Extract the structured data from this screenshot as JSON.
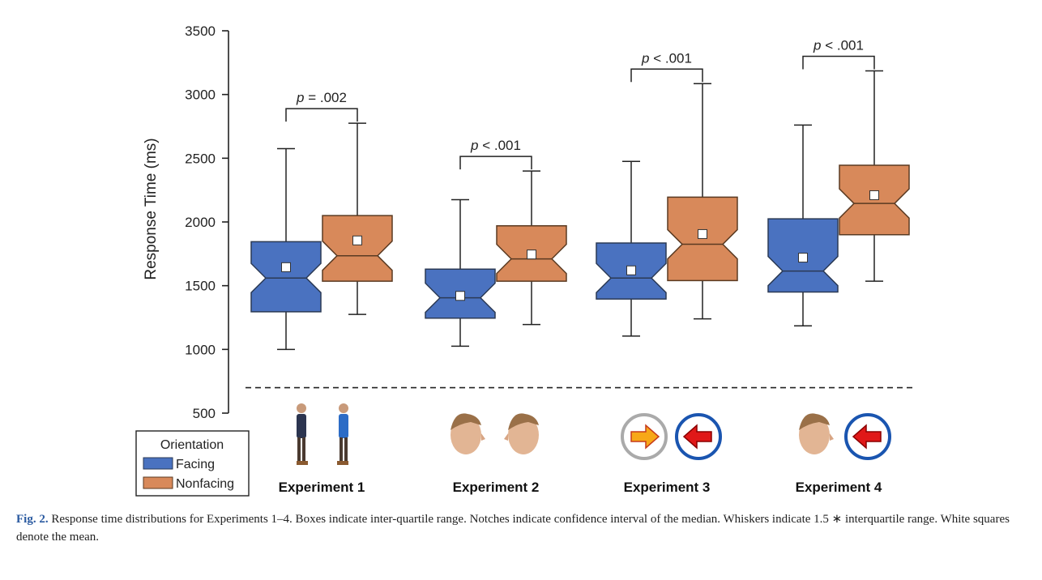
{
  "chart_data": {
    "type": "boxplot",
    "ylabel": "Response Time (ms)",
    "ylim": [
      500,
      3500
    ],
    "yticks": [
      500,
      1000,
      1500,
      2000,
      2500,
      3000,
      3500
    ],
    "reference_line_y": 700,
    "legend": {
      "title": "Orientation",
      "placement": "bottom-left",
      "entries": [
        {
          "name": "Facing",
          "color": "#4a72c0"
        },
        {
          "name": "Nonfacing",
          "color": "#d8895a"
        }
      ]
    },
    "groups": [
      {
        "label": "Experiment 1",
        "pvalue": "p = .002",
        "stimulus": "standing-persons",
        "boxes": [
          {
            "series": "Facing",
            "whisker_low": 1000,
            "q1": 1295,
            "median": 1560,
            "q3": 1845,
            "whisker_high": 2575,
            "mean": 1645
          },
          {
            "series": "Nonfacing",
            "whisker_low": 1275,
            "q1": 1535,
            "median": 1735,
            "q3": 2050,
            "whisker_high": 2775,
            "mean": 1855
          }
        ]
      },
      {
        "label": "Experiment 2",
        "pvalue": "p < .001",
        "stimulus": "heads",
        "boxes": [
          {
            "series": "Facing",
            "whisker_low": 1025,
            "q1": 1245,
            "median": 1405,
            "q3": 1630,
            "whisker_high": 2175,
            "mean": 1420
          },
          {
            "series": "Nonfacing",
            "whisker_low": 1195,
            "q1": 1535,
            "median": 1710,
            "q3": 1970,
            "whisker_high": 2400,
            "mean": 1745
          }
        ]
      },
      {
        "label": "Experiment 3",
        "pvalue": "p < .001",
        "stimulus": "arrows",
        "boxes": [
          {
            "series": "Facing",
            "whisker_low": 1105,
            "q1": 1395,
            "median": 1560,
            "q3": 1835,
            "whisker_high": 2475,
            "mean": 1620
          },
          {
            "series": "Nonfacing",
            "whisker_low": 1240,
            "q1": 1540,
            "median": 1825,
            "q3": 2195,
            "whisker_high": 3085,
            "mean": 1905
          }
        ]
      },
      {
        "label": "Experiment 4",
        "pvalue": "p < .001",
        "stimulus": "head-and-arrow",
        "boxes": [
          {
            "series": "Facing",
            "whisker_low": 1185,
            "q1": 1450,
            "median": 1615,
            "q3": 2025,
            "whisker_high": 2760,
            "mean": 1720
          },
          {
            "series": "Nonfacing",
            "whisker_low": 1535,
            "q1": 1900,
            "median": 2145,
            "q3": 2445,
            "whisker_high": 3185,
            "mean": 2210
          }
        ]
      }
    ]
  },
  "caption": {
    "label": "Fig. 2.",
    "text": "Response time distributions for Experiments 1–4. Boxes indicate inter-quartile range. Notches indicate confidence interval of the median. Whiskers indicate 1.5 ∗ interquartile range. White squares denote the mean."
  },
  "colors": {
    "facing_fill": "#4a72c0",
    "facing_stroke": "#2b3a55",
    "nonfacing_fill": "#d8895a",
    "nonfacing_stroke": "#5a3a22",
    "axis": "#222222"
  }
}
